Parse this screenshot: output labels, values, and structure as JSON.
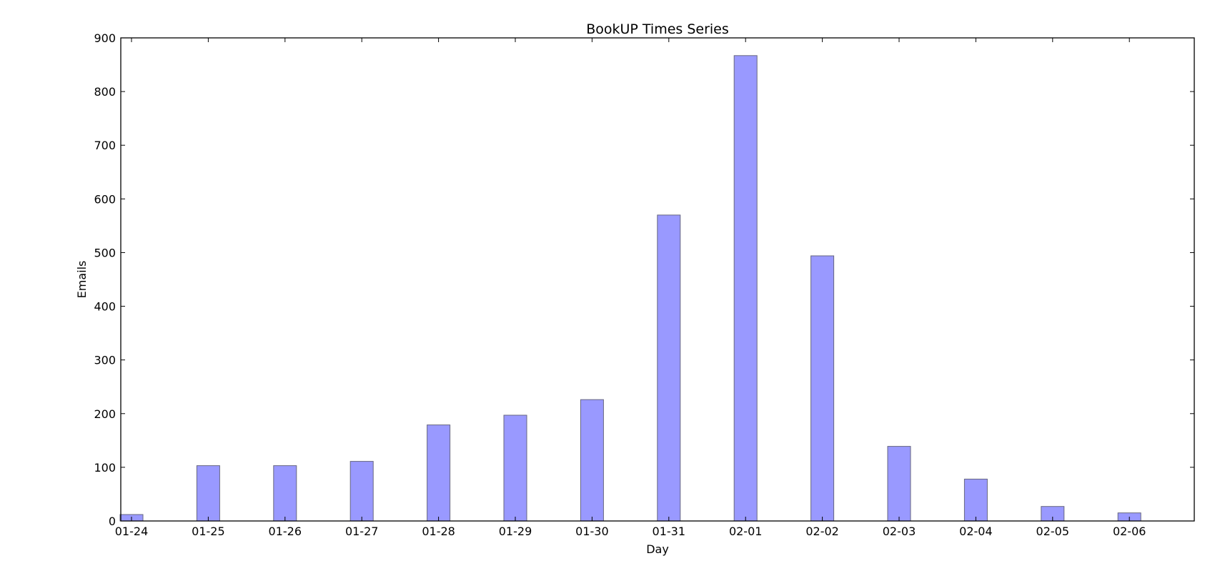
{
  "chart_data": {
    "type": "bar",
    "title": "BookUP Times Series",
    "xlabel": "Day",
    "ylabel": "Emails",
    "categories": [
      "01-24",
      "01-25",
      "01-26",
      "01-27",
      "01-28",
      "01-29",
      "01-30",
      "01-31",
      "02-01",
      "02-02",
      "02-03",
      "02-04",
      "02-05",
      "02-06"
    ],
    "values": [
      12,
      103,
      103,
      111,
      179,
      197,
      226,
      570,
      867,
      494,
      139,
      78,
      27,
      15
    ],
    "ylim": [
      0,
      900
    ],
    "yticks": [
      0,
      100,
      200,
      300,
      400,
      500,
      600,
      700,
      800,
      900
    ],
    "bar_color": "#9999ff",
    "bar_edge_color": "#66667f",
    "grid": false,
    "legend": "none"
  }
}
